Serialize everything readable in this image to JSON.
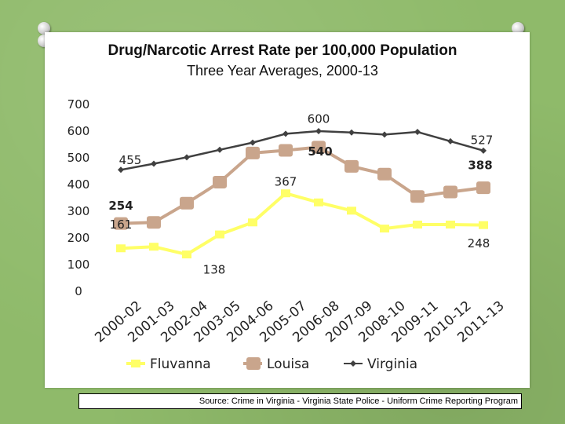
{
  "chart_data": {
    "type": "line",
    "title": "Drug/Narcotic Arrest Rate per 100,000 Population",
    "subtitle": "Three Year Averages, 2000-13",
    "categories": [
      "2000-02",
      "2001-03",
      "2002-04",
      "2003-05",
      "2004-06",
      "2005-07",
      "2006-08",
      "2007-09",
      "2008-10",
      "2009-11",
      "2010-12",
      "2011-13"
    ],
    "ylim": [
      0,
      700
    ],
    "yticks": [
      0,
      100,
      200,
      300,
      400,
      500,
      600,
      700
    ],
    "grid": false,
    "legend_position": "bottom",
    "series": [
      {
        "name": "Fluvanna",
        "color": "#ffff66",
        "marker": "square",
        "values": [
          161,
          167,
          138,
          213,
          258,
          367,
          333,
          302,
          235,
          250,
          250,
          248
        ],
        "labels": [
          {
            "index": 0,
            "text": "161"
          },
          {
            "index": 2,
            "text": "138"
          },
          {
            "index": 5,
            "text": "367"
          },
          {
            "index": 11,
            "text": "248"
          }
        ]
      },
      {
        "name": "Louisa",
        "color": "#c9a58c",
        "marker": "rounded-square",
        "values": [
          254,
          258,
          330,
          409,
          518,
          528,
          540,
          468,
          439,
          355,
          372,
          388
        ],
        "labels": [
          {
            "index": 0,
            "text": "254"
          },
          {
            "index": 6,
            "text": "540"
          },
          {
            "index": 11,
            "text": "388"
          }
        ]
      },
      {
        "name": "Virginia",
        "color": "#404040",
        "marker": "diamond",
        "values": [
          455,
          478,
          502,
          530,
          557,
          590,
          600,
          595,
          587,
          597,
          562,
          527
        ],
        "labels": [
          {
            "index": 0,
            "text": "455"
          },
          {
            "index": 6,
            "text": "600"
          },
          {
            "index": 11,
            "text": "527"
          }
        ]
      }
    ]
  },
  "source": "Source: Crime in Virginia - Virginia State Police - Uniform Crime Reporting Program"
}
